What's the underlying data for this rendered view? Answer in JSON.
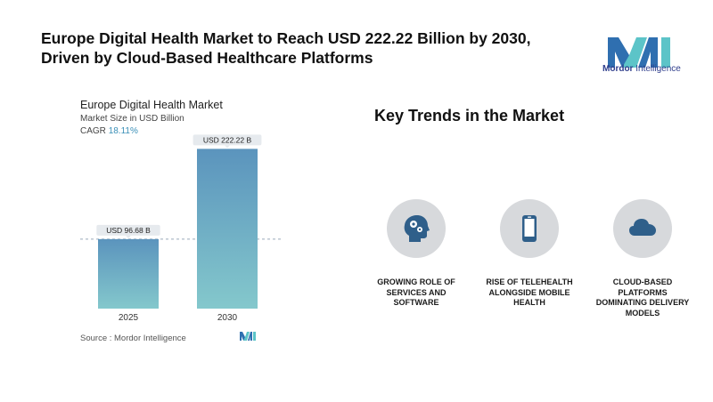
{
  "headline": {
    "line1": "Europe Digital Health Market to Reach USD 222.22 Billion by 2030,",
    "line2": "Driven by Cloud-Based Healthcare Platforms"
  },
  "brand": {
    "name_bold": "Mordor",
    "name_rest": " Intelligence",
    "colors": {
      "teal": "#5cc4c8",
      "blue": "#2f3e8c"
    }
  },
  "chart_data": {
    "type": "bar",
    "title": "Europe Digital Health Market",
    "subtitle": "Market Size in USD Billion",
    "cagr_label": "CAGR",
    "cagr_value": "18.11%",
    "categories": [
      "2025",
      "2030"
    ],
    "values": [
      96.68,
      222.22
    ],
    "data_labels": [
      "USD 96.68 B",
      "USD 222.22 B"
    ],
    "ylim": [
      0,
      240
    ],
    "grid": false,
    "bar_gradient": {
      "top": "#5b94bd",
      "bottom": "#84c8cc"
    },
    "source": "Source :  Mordor Intelligence"
  },
  "trends": {
    "title": "Key Trends in the Market",
    "items": [
      {
        "icon": "head-gears-icon",
        "label_lines": [
          "GROWING ROLE OF",
          "SERVICES AND",
          "SOFTWARE"
        ]
      },
      {
        "icon": "smartphone-icon",
        "label_lines": [
          "RISE OF TELEHEALTH",
          "ALONGSIDE MOBILE",
          "HEALTH"
        ]
      },
      {
        "icon": "cloud-icon",
        "label_lines": [
          "CLOUD-BASED",
          "PLATFORMS",
          "DOMINATING DELIVERY",
          "MODELS"
        ]
      }
    ]
  }
}
